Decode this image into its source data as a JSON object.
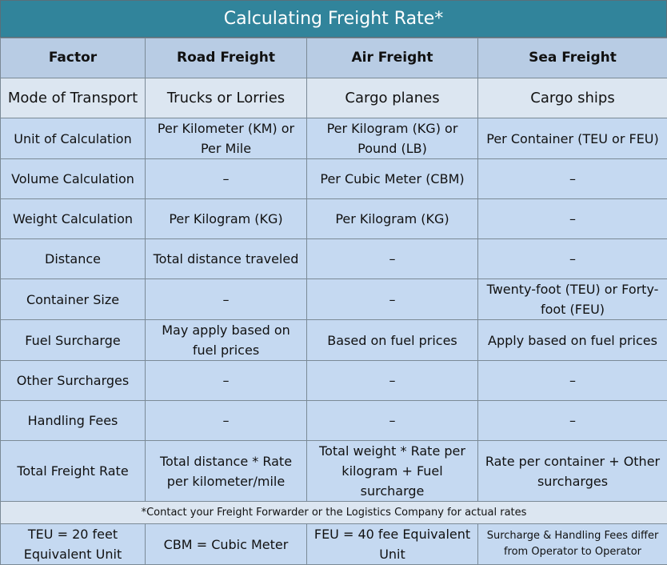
{
  "title": "Calculating Freight Rate*",
  "header": {
    "factor": "Factor",
    "road": "Road Freight",
    "air": "Air Freight",
    "sea": "Sea Freight"
  },
  "rows": [
    {
      "factor": "Mode of Transport",
      "road": "Trucks or Lorries",
      "air": "Cargo planes",
      "sea": "Cargo ships"
    },
    {
      "factor": "Unit of Calculation",
      "road": "Per Kilometer (KM) or Per Mile",
      "air": "Per Kilogram (KG) or Pound (LB)",
      "sea": "Per Container (TEU or FEU)"
    },
    {
      "factor": "Volume Calculation",
      "road": "–",
      "air": "Per Cubic Meter (CBM)",
      "sea": "–"
    },
    {
      "factor": "Weight Calculation",
      "road": "Per Kilogram (KG)",
      "air": "Per Kilogram (KG)",
      "sea": "–"
    },
    {
      "factor": "Distance",
      "road": "Total distance traveled",
      "air": "–",
      "sea": "–"
    },
    {
      "factor": "Container Size",
      "road": "–",
      "air": "–",
      "sea": "Twenty-foot (TEU) or Forty-foot (FEU)"
    },
    {
      "factor": "Fuel Surcharge",
      "road": "May apply based on fuel prices",
      "air": "Based on fuel prices",
      "sea": "Apply based on fuel prices"
    },
    {
      "factor": "Other Surcharges",
      "road": "–",
      "air": "–",
      "sea": "–"
    },
    {
      "factor": "Handling Fees",
      "road": "–",
      "air": "–",
      "sea": "–"
    },
    {
      "factor": "Total Freight Rate",
      "road": "Total distance * Rate per kilometer/mile",
      "air": "Total weight * Rate per kilogram + Fuel surcharge",
      "sea": "Rate per container + Other surcharges"
    }
  ],
  "note": "*Contact your Freight Forwarder or the Logistics Company for actual rates",
  "footer": {
    "teu": "TEU = 20 feet Equivalent Unit",
    "cbm": "CBM = Cubic Meter",
    "feu": "FEU = 40 fee Equivalent Unit",
    "fees": "Surcharge & Handling Fees differ from Operator to Operator"
  }
}
